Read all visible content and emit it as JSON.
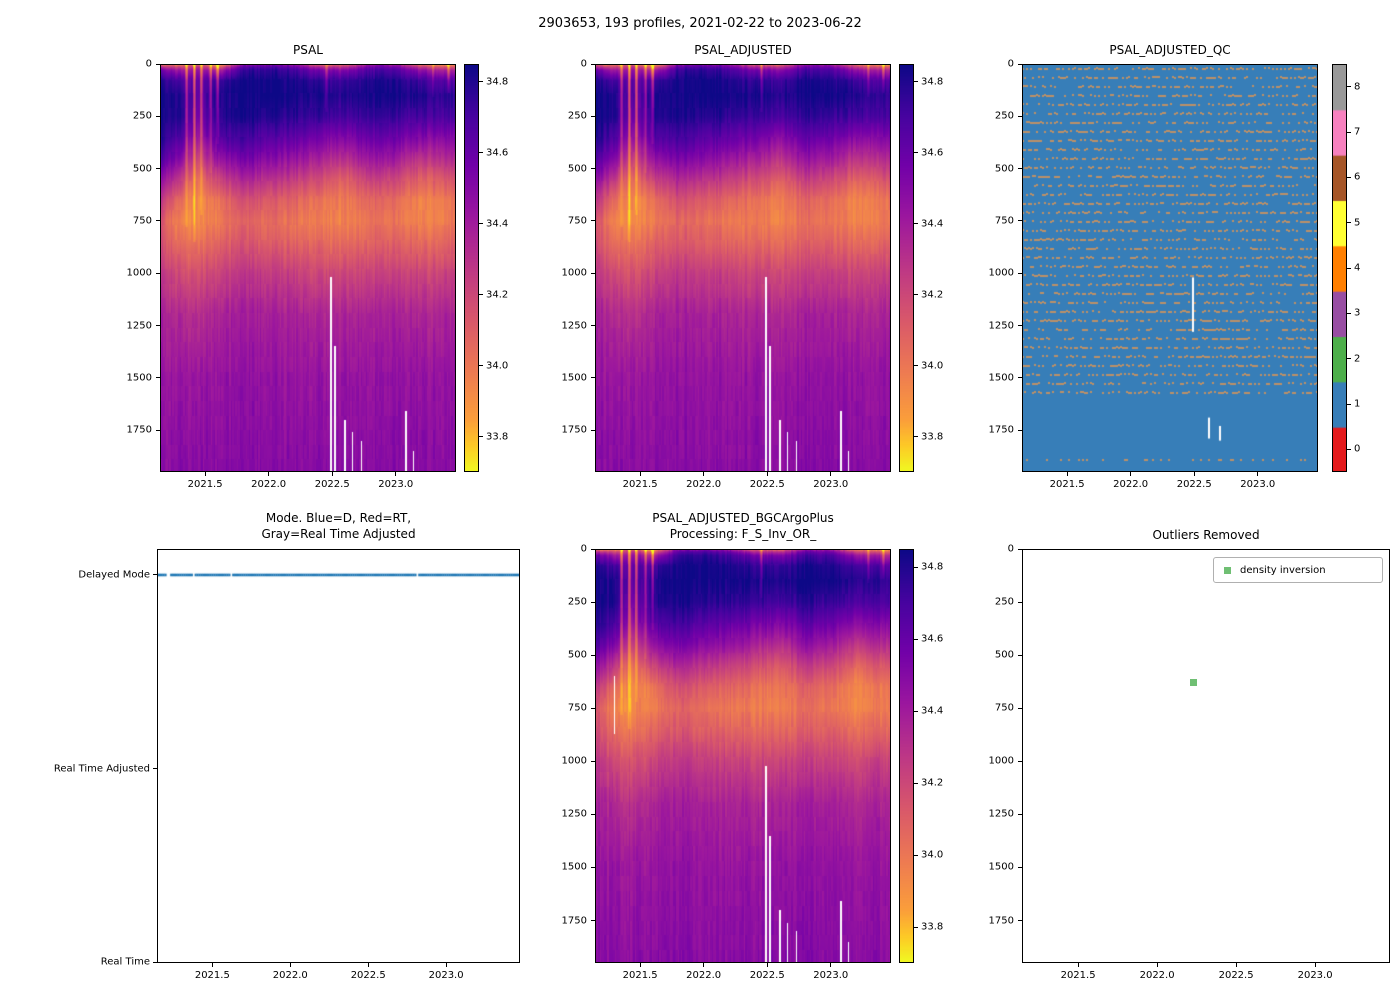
{
  "suptitle": "2903653, 193 profiles, 2021-02-22 to 2023-06-22",
  "plots": {
    "psal": {
      "title": "PSAL"
    },
    "psal_adjusted": {
      "title": "PSAL_ADJUSTED"
    },
    "psal_adjusted_qc": {
      "title": "PSAL_ADJUSTED_QC"
    },
    "mode": {
      "title_line1": "Mode. Blue=D, Red=RT,",
      "title_line2": "Gray=Real Time Adjusted"
    },
    "bgc": {
      "title_line1": "PSAL_ADJUSTED_BGCArgoPlus",
      "title_line2": "Processing: F_S_Inv_OR_"
    },
    "outliers": {
      "title": "Outliers Removed",
      "legend_label": "density inversion"
    }
  },
  "chart_data": {
    "n_profiles": 193,
    "x_axis": {
      "range": [
        2021.145,
        2023.474
      ],
      "tick_values": [
        2021.5,
        2022.0,
        2022.5,
        2023.0
      ],
      "tick_labels": [
        "2021.5",
        "2022.0",
        "2022.5",
        "2023.0"
      ]
    },
    "depth_axis": {
      "range": [
        0,
        1950
      ],
      "tick_values": [
        0,
        250,
        500,
        750,
        1000,
        1250,
        1500,
        1750
      ],
      "tick_labels": [
        "0",
        "250",
        "500",
        "750",
        "1000",
        "1250",
        "1500",
        "1750"
      ]
    },
    "salinity_field": {
      "type": "heatmap",
      "vmin": 33.7,
      "vmax": 34.85,
      "colormap": "plasma_r",
      "colorbar_tick_values": [
        34.8,
        34.6,
        34.4,
        34.2,
        34.0,
        33.8
      ],
      "colorbar_tick_labels": [
        "34.8",
        "34.6",
        "34.4",
        "34.2",
        "34.0",
        "33.8"
      ],
      "grid": {
        "times": [
          2021.15,
          2021.3,
          2021.45,
          2021.6,
          2021.8,
          2022.0,
          2022.2,
          2022.4,
          2022.6,
          2022.8,
          2023.0,
          2023.2,
          2023.47
        ],
        "depths": [
          0,
          30,
          80,
          150,
          250,
          350,
          450,
          550,
          650,
          750,
          850,
          1000,
          1200,
          1500,
          1950
        ],
        "values": [
          [
            34.1,
            34.0,
            34.2,
            33.85,
            34.55,
            34.6,
            34.5,
            34.15,
            34.1,
            34.5,
            34.45,
            34.05,
            33.9
          ],
          [
            34.6,
            34.4,
            34.45,
            34.35,
            34.75,
            34.78,
            34.72,
            34.55,
            34.5,
            34.7,
            34.68,
            34.45,
            34.35
          ],
          [
            34.8,
            34.7,
            34.6,
            34.72,
            34.84,
            34.85,
            34.82,
            34.76,
            34.74,
            34.82,
            34.8,
            34.72,
            34.65
          ],
          [
            34.84,
            34.8,
            34.62,
            34.8,
            34.85,
            34.85,
            34.84,
            34.82,
            34.8,
            34.84,
            34.83,
            34.8,
            34.76
          ],
          [
            34.84,
            34.8,
            34.55,
            34.78,
            34.83,
            34.8,
            34.78,
            34.74,
            34.7,
            34.78,
            34.74,
            34.7,
            34.7
          ],
          [
            34.8,
            34.68,
            34.42,
            34.66,
            34.72,
            34.66,
            34.62,
            34.56,
            34.5,
            34.62,
            34.58,
            34.5,
            34.52
          ],
          [
            34.68,
            34.5,
            34.22,
            34.46,
            34.56,
            34.5,
            34.45,
            34.38,
            34.3,
            34.45,
            34.4,
            34.28,
            34.35
          ],
          [
            34.48,
            34.26,
            34.02,
            34.22,
            34.36,
            34.3,
            34.25,
            34.18,
            34.1,
            34.25,
            34.2,
            34.08,
            34.16
          ],
          [
            34.28,
            34.04,
            33.92,
            34.02,
            34.18,
            34.12,
            34.08,
            34.02,
            33.98,
            34.08,
            34.04,
            33.94,
            34.02
          ],
          [
            34.14,
            33.94,
            33.92,
            33.98,
            34.08,
            34.04,
            34.0,
            33.98,
            33.95,
            34.03,
            34.0,
            33.94,
            34.0
          ],
          [
            34.18,
            34.02,
            34.0,
            34.08,
            34.14,
            34.1,
            34.08,
            34.05,
            34.04,
            34.09,
            34.08,
            34.04,
            34.08
          ],
          [
            34.28,
            34.18,
            34.15,
            34.22,
            34.28,
            34.25,
            34.24,
            34.2,
            34.2,
            34.24,
            34.23,
            34.2,
            34.24
          ],
          [
            34.38,
            34.33,
            34.3,
            34.37,
            34.39,
            34.38,
            34.37,
            34.35,
            34.35,
            34.38,
            34.37,
            34.35,
            34.37
          ],
          [
            34.44,
            34.43,
            34.42,
            34.44,
            34.46,
            34.45,
            34.44,
            34.44,
            34.44,
            34.45,
            34.45,
            34.44,
            34.45
          ],
          [
            34.49,
            34.49,
            34.48,
            34.49,
            34.5,
            34.49,
            34.49,
            34.49,
            34.49,
            34.5,
            34.49,
            34.49,
            34.49
          ]
        ]
      },
      "fresh_streaks": [
        {
          "x": 2021.355,
          "w": 0.014,
          "depth": 780,
          "dv": 0.5
        },
        {
          "x": 2021.415,
          "w": 0.013,
          "depth": 850,
          "dv": 0.62
        },
        {
          "x": 2021.47,
          "w": 0.014,
          "depth": 720,
          "dv": 0.55
        },
        {
          "x": 2021.545,
          "w": 0.011,
          "depth": 520,
          "dv": 0.45
        },
        {
          "x": 2021.6,
          "w": 0.012,
          "depth": 380,
          "dv": 0.55
        },
        {
          "x": 2022.455,
          "w": 0.01,
          "depth": 230,
          "dv": 0.35
        },
        {
          "x": 2023.295,
          "w": 0.01,
          "depth": 160,
          "dv": 0.32
        },
        {
          "x": 2023.415,
          "w": 0.012,
          "depth": 140,
          "dv": 0.38
        }
      ],
      "missing_columns": [
        {
          "x": 2022.49,
          "from": 1020,
          "to": 1950
        },
        {
          "x": 2022.52,
          "from": 1350,
          "to": 1950
        },
        {
          "x": 2022.6,
          "from": 1700,
          "to": 1950
        },
        {
          "x": 2022.66,
          "from": 1760,
          "to": 1950
        },
        {
          "x": 2022.73,
          "from": 1800,
          "to": 1950
        },
        {
          "x": 2023.08,
          "from": 1660,
          "to": 1950
        },
        {
          "x": 2023.14,
          "from": 1850,
          "to": 1950
        }
      ]
    },
    "qc_field": {
      "type": "heatmap",
      "base_value": 1,
      "value_range": [
        0,
        8
      ],
      "colors": [
        "#e41a1c",
        "#377eb8",
        "#4daf4a",
        "#984ea3",
        "#ff7f00",
        "#ffff33",
        "#a65628",
        "#f781bf",
        "#999999"
      ],
      "colorbar_tick_labels": [
        "0",
        "1",
        "2",
        "3",
        "4",
        "5",
        "6",
        "7",
        "8"
      ],
      "speckle_color": "#bd9167",
      "speckle_depth_max": 1580,
      "sparse_row_depth": 1890,
      "gaps": [
        {
          "x": 2022.49,
          "from": 1020,
          "to": 1280
        },
        {
          "x": 2022.62,
          "from": 1690,
          "to": 1790
        },
        {
          "x": 2022.7,
          "from": 1730,
          "to": 1800
        }
      ]
    },
    "mode": {
      "type": "line",
      "categories": [
        "Delayed Mode",
        "Real Time Adjusted",
        "Real Time"
      ],
      "all_profiles_value": "Delayed Mode",
      "line_color": "#1f77b4"
    },
    "bgc_extra_missing_columns": [
      {
        "x": 2021.3,
        "from": 600,
        "to": 870
      }
    ],
    "outliers": {
      "type": "scatter",
      "legend_label": "density inversion",
      "marker_color": "#6fbf73",
      "points": [
        {
          "x": 2022.23,
          "depth": 630
        }
      ]
    },
    "charts": [
      {
        "id": "psal",
        "type": "heatmap",
        "title": "PSAL",
        "field": "salinity_field"
      },
      {
        "id": "psal_adjusted",
        "type": "heatmap",
        "title": "PSAL_ADJUSTED",
        "field": "salinity_field"
      },
      {
        "id": "psal_adjusted_qc",
        "type": "heatmap",
        "title": "PSAL_ADJUSTED_QC",
        "field": "qc_field"
      },
      {
        "id": "mode",
        "type": "line",
        "title": "Mode. Blue=D, Red=RT,\nGray=Real Time Adjusted",
        "field": "mode"
      },
      {
        "id": "psal_adjusted_bgc",
        "type": "heatmap",
        "title": "PSAL_ADJUSTED_BGCArgoPlus\nProcessing: F_S_Inv_OR_",
        "field": "salinity_field"
      },
      {
        "id": "outliers_removed",
        "type": "scatter",
        "title": "Outliers Removed",
        "field": "outliers"
      }
    ]
  }
}
